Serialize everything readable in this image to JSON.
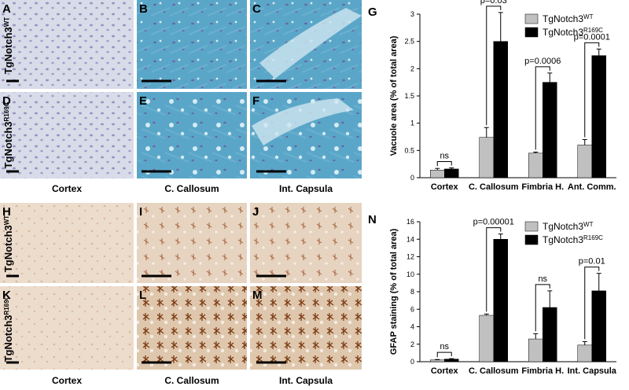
{
  "colors": {
    "wt_bar": "#c0c0c0",
    "mut_bar": "#000000",
    "lfb_bg": "#5aa6c8",
    "lfb_cortex_bg": "#d6d9e6",
    "gfap_bg": "#e9d9c9",
    "gfap_stain": "#8a4a1a"
  },
  "micrographs": {
    "row_labels": {
      "wt_top": {
        "base": "TgNotch3",
        "sup": "WT"
      },
      "mut_top": {
        "base": "TgNotch3",
        "sup": "R169C"
      },
      "wt_bottom": {
        "base": "TgNotch3",
        "sup": "WT"
      },
      "mut_bottom": {
        "base": "TgNotch3",
        "sup": "R169C"
      }
    },
    "column_labels_top": [
      "Cortex",
      "C. Callosum",
      "Int. Capsula"
    ],
    "column_labels_bottom": [
      "Cortex",
      "C. Callosum",
      "Int. Capsula"
    ],
    "panel_letters": [
      "A",
      "B",
      "C",
      "D",
      "E",
      "F",
      "H",
      "I",
      "J",
      "K",
      "L",
      "M"
    ]
  },
  "chart_data": [
    {
      "type": "bar",
      "panel_letter": "G",
      "title": "",
      "xlabel": "",
      "ylabel": "Vacuole area (% of total area)",
      "ylim": [
        0,
        3
      ],
      "yticks": [
        "0",
        "0.5",
        "1",
        "1.5",
        "2",
        "2.5",
        "3"
      ],
      "categories": [
        "Cortex",
        "C. Callosum",
        "Fimbria H.",
        "Ant. Comm."
      ],
      "series": [
        {
          "name": "TgNotch3",
          "name_sup": "WT",
          "values": [
            0.14,
            0.74,
            0.45,
            0.6
          ],
          "errors": [
            0.03,
            0.18,
            0.02,
            0.1
          ]
        },
        {
          "name": "TgNotch3",
          "name_sup": "R169C",
          "values": [
            0.16,
            2.5,
            1.75,
            2.24
          ],
          "errors": [
            0.02,
            0.53,
            0.17,
            0.12
          ]
        }
      ],
      "annotations": [
        "ns",
        "p=0.03",
        "p=0.0006",
        "p=0.0001"
      ],
      "legend": "top-right",
      "grid": false
    },
    {
      "type": "bar",
      "panel_letter": "N",
      "title": "",
      "xlabel": "",
      "ylabel": "GFAP staining (% of total area)",
      "ylim": [
        0,
        16
      ],
      "yticks": [
        "0",
        "2",
        "4",
        "6",
        "8",
        "10",
        "12",
        "14",
        "16"
      ],
      "categories": [
        "Cortex",
        "C. Callosum",
        "Fimbria H.",
        "Int. Capsula"
      ],
      "series": [
        {
          "name": "TgNotch3",
          "name_sup": "WT",
          "values": [
            0.2,
            5.3,
            2.6,
            1.9
          ],
          "errors": [
            0.05,
            0.15,
            0.6,
            0.4
          ]
        },
        {
          "name": "TgNotch3",
          "name_sup": "R169C",
          "values": [
            0.3,
            14.0,
            6.2,
            8.1
          ],
          "errors": [
            0.05,
            0.6,
            1.9,
            2.0
          ]
        }
      ],
      "annotations": [
        "ns",
        "p=0.00001",
        "ns",
        "p=0.01"
      ],
      "legend": "top-right",
      "grid": false
    }
  ]
}
